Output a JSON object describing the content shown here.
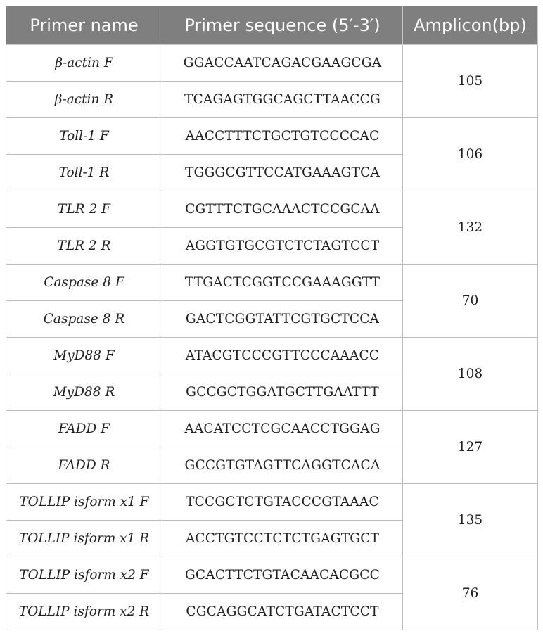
{
  "table": {
    "headers": [
      "Primer name",
      "Primer sequence (5′-3′)",
      "Amplicon(bp)"
    ],
    "groups": [
      {
        "amplicon": "105",
        "rows": [
          {
            "name": "β-actin F",
            "sequence": "GGACCAATCAGACGAAGCGA"
          },
          {
            "name": "β-actin R",
            "sequence": "TCAGAGTGGCAGCTTAACCG"
          }
        ]
      },
      {
        "amplicon": "106",
        "rows": [
          {
            "name": "Toll-1 F",
            "sequence": "AACCTTTCTGCTGTCCCCAC"
          },
          {
            "name": "Toll-1 R",
            "sequence": "TGGGCGTTCCATGAAAGTCA"
          }
        ]
      },
      {
        "amplicon": "132",
        "rows": [
          {
            "name": "TLR 2 F",
            "sequence": "CGTTTCTGCAAACTCCGCAA"
          },
          {
            "name": "TLR 2 R",
            "sequence": "AGGTGTGCGTCTCTAGTCCT"
          }
        ]
      },
      {
        "amplicon": "70",
        "rows": [
          {
            "name": "Caspase 8 F",
            "sequence": "TTGACTCGGTCCGAAAGGTT"
          },
          {
            "name": "Caspase 8 R",
            "sequence": "GACTCGGTATTCGTGCTCCA"
          }
        ]
      },
      {
        "amplicon": "108",
        "rows": [
          {
            "name": "MyD88 F",
            "sequence": "ATACGTCCCGTTCCCAAACC"
          },
          {
            "name": "MyD88 R",
            "sequence": "GCCGCTGGATGCTTGAATTT"
          }
        ]
      },
      {
        "amplicon": "127",
        "rows": [
          {
            "name": "FADD F",
            "sequence": "AACATCCTCGCAACCTGGAG"
          },
          {
            "name": "FADD R",
            "sequence": "GCCGTGTAGTTCAGGTCACA"
          }
        ]
      },
      {
        "amplicon": "135",
        "rows": [
          {
            "name": "TOLLIP isform x1 F",
            "sequence": "TCCGCTCTGTACCCGTAAAC"
          },
          {
            "name": "TOLLIP isform x1 R",
            "sequence": "ACCTGTCCTCTCTGAGTGCT"
          }
        ]
      },
      {
        "amplicon": "76",
        "rows": [
          {
            "name": "TOLLIP isform x2 F",
            "sequence": "GCACTTCTGTACAACACGCC"
          },
          {
            "name": "TOLLIP isform x2 R",
            "sequence": "CGCAGGCATCTGATACTCCT"
          }
        ]
      }
    ]
  }
}
